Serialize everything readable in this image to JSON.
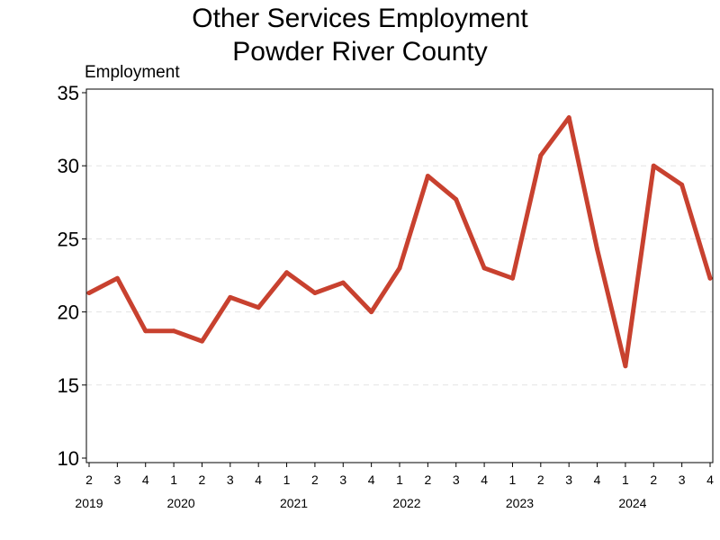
{
  "chart_data": {
    "type": "line",
    "title": "Other Services Employment",
    "subtitle": "Powder River County",
    "ylabel": "Employment",
    "xlabel": "",
    "ylim": [
      10,
      35
    ],
    "yticks": [
      "10",
      "15",
      "20",
      "25",
      "30",
      "35"
    ],
    "grid": "horizontal dashed",
    "legend": "none",
    "line_color": "#c8412f",
    "x": [
      "2019 Q2",
      "2019 Q3",
      "2019 Q4",
      "2020 Q1",
      "2020 Q2",
      "2020 Q3",
      "2020 Q4",
      "2021 Q1",
      "2021 Q2",
      "2021 Q3",
      "2021 Q4",
      "2022 Q1",
      "2022 Q2",
      "2022 Q3",
      "2022 Q4",
      "2023 Q1",
      "2023 Q2",
      "2023 Q3",
      "2023 Q4",
      "2024 Q1",
      "2024 Q2",
      "2024 Q3",
      "2024 Q4"
    ],
    "quarter_labels": [
      "2",
      "3",
      "4",
      "1",
      "2",
      "3",
      "4",
      "1",
      "2",
      "3",
      "4",
      "1",
      "2",
      "3",
      "4",
      "1",
      "2",
      "3",
      "4",
      "1",
      "2",
      "3",
      "4"
    ],
    "year_labels": [
      {
        "label": "2019",
        "index": 0
      },
      {
        "label": "2020",
        "index": 3
      },
      {
        "label": "2021",
        "index": 7
      },
      {
        "label": "2022",
        "index": 11
      },
      {
        "label": "2023",
        "index": 15
      },
      {
        "label": "2024",
        "index": 19
      }
    ],
    "series": [
      {
        "values": [
          21.3,
          22.3,
          18.7,
          18.7,
          18.0,
          21.0,
          20.3,
          22.7,
          21.3,
          22.0,
          20.0,
          23.0,
          29.3,
          27.7,
          23.0,
          22.3,
          30.7,
          33.3,
          24.3,
          16.3,
          30.0,
          28.7,
          22.3
        ]
      }
    ]
  }
}
